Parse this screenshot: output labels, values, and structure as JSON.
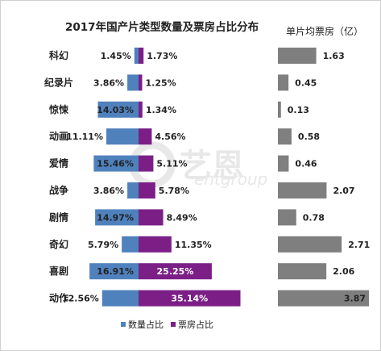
{
  "watermark": {
    "cn": "艺恩",
    "en": "entgroup"
  },
  "chart_data": [
    {
      "type": "bar",
      "title": "2017年国产片类型数量及票房占比分布",
      "categories": [
        "科幻",
        "纪录片",
        "惊悚",
        "动画",
        "爱情",
        "战争",
        "剧情",
        "奇幻",
        "喜剧",
        "动作"
      ],
      "series": [
        {
          "name": "数量占比",
          "color": "#4f81bd",
          "values": [
            1.45,
            3.86,
            14.03,
            11.11,
            15.46,
            3.86,
            14.97,
            5.79,
            16.91,
            12.56
          ]
        },
        {
          "name": "票房占比",
          "color": "#7b1f87",
          "values": [
            1.73,
            1.25,
            1.34,
            4.56,
            5.11,
            5.78,
            8.49,
            11.35,
            25.25,
            35.14
          ]
        }
      ],
      "value_labels_left": [
        "1.45%",
        "3.86%",
        "14.03%",
        "11.11%",
        "15.46%",
        "3.86%",
        "14.97%",
        "5.79%",
        "16.91%",
        "12.56%"
      ],
      "value_labels_right": [
        "1.73%",
        "1.25%",
        "1.34%",
        "4.56%",
        "5.11%",
        "5.78%",
        "8.49%",
        "11.35%",
        "25.25%",
        "35.14%"
      ],
      "legend_position": "bottom"
    },
    {
      "type": "bar",
      "title": "单片均票房（亿）",
      "categories": [
        "科幻",
        "纪录片",
        "惊悚",
        "动画",
        "爱情",
        "战争",
        "剧情",
        "奇幻",
        "喜剧",
        "动作"
      ],
      "values": [
        1.63,
        0.45,
        0.13,
        0.58,
        0.46,
        2.07,
        0.78,
        2.71,
        2.06,
        3.87
      ],
      "value_labels": [
        "1.63",
        "0.45",
        "0.13",
        "0.58",
        "0.46",
        "2.07",
        "0.78",
        "2.71",
        "2.06",
        "3.87"
      ],
      "color": "#7f7f7f"
    }
  ]
}
